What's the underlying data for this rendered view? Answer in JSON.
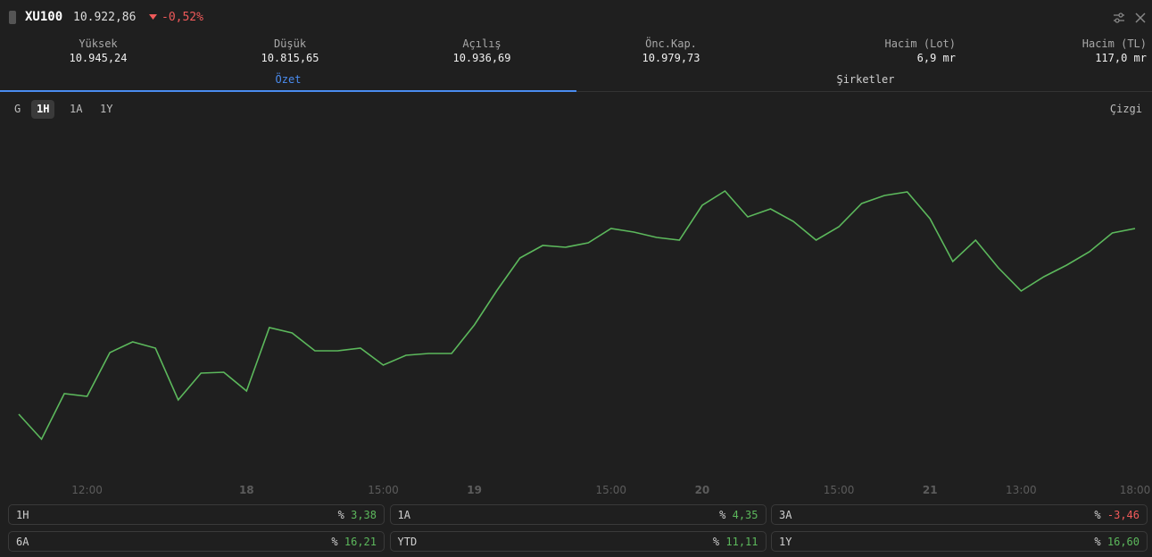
{
  "header": {
    "symbol": "XU100",
    "price": "10.922,86",
    "change": "-0,52%"
  },
  "stats": [
    {
      "label": "Yüksek",
      "value": "10.945,24"
    },
    {
      "label": "Düşük",
      "value": "10.815,65"
    },
    {
      "label": "Açılış",
      "value": "10.936,69"
    },
    {
      "label": "Önc.Kap.",
      "value": "10.979,73"
    },
    {
      "label": "Hacim (Lot)",
      "value": "6,9 mr"
    },
    {
      "label": "Hacim (TL)",
      "value": "117,0 mr"
    }
  ],
  "tabs": [
    "Özet",
    "Şirketler"
  ],
  "ranges": [
    "G",
    "1H",
    "1A",
    "1Y"
  ],
  "chart_style": "Çizgi",
  "chart_data": {
    "type": "line",
    "color": "#5cb85c",
    "categories": [
      null,
      null,
      null,
      "12:00",
      null,
      null,
      null,
      null,
      null,
      null,
      "18",
      null,
      null,
      null,
      null,
      null,
      "15:00",
      null,
      null,
      null,
      "19",
      null,
      null,
      null,
      null,
      null,
      "15:00",
      null,
      null,
      null,
      "20",
      null,
      null,
      null,
      null,
      null,
      "15:00",
      null,
      null,
      null,
      "21",
      null,
      null,
      null,
      "13:00",
      null,
      null,
      null,
      null,
      "18:00"
    ],
    "values": [
      10728,
      10700,
      10751,
      10748,
      10797,
      10809,
      10802,
      10744,
      10774,
      10775,
      10754,
      10825,
      10819,
      10799,
      10799,
      10802,
      10783,
      10794,
      10796,
      10796,
      10828,
      10867,
      10903,
      10917,
      10915,
      10920,
      10936,
      10932,
      10926,
      10923,
      10962,
      10978,
      10949,
      10958,
      10944,
      10923,
      10938,
      10964,
      10973,
      10977,
      10947,
      10899,
      10923,
      10892,
      10866,
      10882,
      10895,
      10910,
      10931,
      10936
    ],
    "ylim": [
      10662,
      11052
    ]
  },
  "performance": [
    {
      "label": "1H",
      "unit": "%",
      "value": "3,38"
    },
    {
      "label": "1A",
      "unit": "%",
      "value": "4,35"
    },
    {
      "label": "3A",
      "unit": "%",
      "value": "-3,46"
    },
    {
      "label": "6A",
      "unit": "%",
      "value": "16,21"
    },
    {
      "label": "YTD",
      "unit": "%",
      "value": "11,11"
    },
    {
      "label": "1Y",
      "unit": "%",
      "value": "16,60"
    }
  ]
}
